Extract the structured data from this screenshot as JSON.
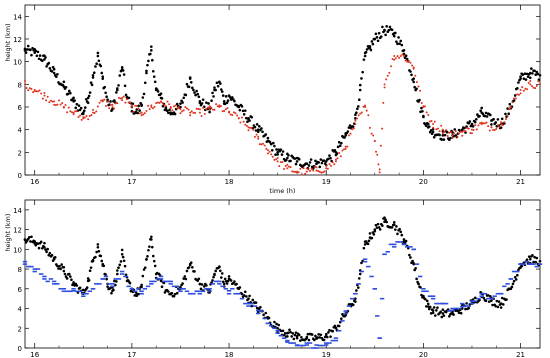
{
  "colors": {
    "black_series": "#000000",
    "red_series": "#e0321e",
    "blue_series": "#2f4fe0",
    "axis": "#000000",
    "background": "#ffffff"
  },
  "chart_data": [
    {
      "type": "scatter",
      "xlabel": "time (h)",
      "ylabel": "height (km)",
      "xlim": [
        15.9,
        21.2
      ],
      "ylim": [
        0,
        15
      ],
      "x_ticks": [
        16,
        17,
        18,
        19,
        20,
        21
      ],
      "y_ticks": [
        0,
        2,
        4,
        6,
        8,
        10,
        12,
        14
      ],
      "grid": false,
      "series": [
        {
          "color": "#000000",
          "style": "dots",
          "x": [
            15.9,
            16.0,
            16.1,
            16.2,
            16.3,
            16.4,
            16.5,
            16.55,
            16.6,
            16.65,
            16.7,
            16.75,
            16.8,
            16.85,
            16.9,
            16.95,
            17.0,
            17.05,
            17.1,
            17.15,
            17.2,
            17.25,
            17.3,
            17.35,
            17.4,
            17.5,
            17.6,
            17.7,
            17.8,
            17.85,
            17.9,
            17.95,
            18.0,
            18.1,
            18.2,
            18.3,
            18.4,
            18.5,
            18.6,
            18.7,
            18.8,
            18.9,
            19.0,
            19.1,
            19.2,
            19.3,
            19.35,
            19.4,
            19.45,
            19.5,
            19.6,
            19.7,
            19.8,
            19.9,
            19.95,
            20.0,
            20.05,
            20.1,
            20.2,
            20.3,
            20.4,
            20.5,
            20.6,
            20.7,
            20.8,
            20.9,
            21.0,
            21.1,
            21.2
          ],
          "y": [
            11,
            10.8,
            10.2,
            9.0,
            7.8,
            6.5,
            5.5,
            6.8,
            8.8,
            10.5,
            8.5,
            6.5,
            5.8,
            7.5,
            9.5,
            6.8,
            6.0,
            5.5,
            6.2,
            9.0,
            11.0,
            7.5,
            6.8,
            5.8,
            5.5,
            6.0,
            8.5,
            6.5,
            5.8,
            7.5,
            8.2,
            6.5,
            7.0,
            6.0,
            5.0,
            4.0,
            3.0,
            2.0,
            1.5,
            1.2,
            1.0,
            1.0,
            1.2,
            2.0,
            3.5,
            5.0,
            7.5,
            10.5,
            11.2,
            12.0,
            12.8,
            12.5,
            11.0,
            8.5,
            6.5,
            5.2,
            4.2,
            3.8,
            3.5,
            3.5,
            4.0,
            4.5,
            5.5,
            4.8,
            4.5,
            6.0,
            8.5,
            9.0,
            8.8
          ]
        },
        {
          "color": "#e0321e",
          "style": "dots",
          "x": [
            15.9,
            16.0,
            16.1,
            16.2,
            16.3,
            16.4,
            16.5,
            16.6,
            16.7,
            16.8,
            16.9,
            17.0,
            17.1,
            17.2,
            17.3,
            17.4,
            17.5,
            17.6,
            17.7,
            17.8,
            17.9,
            18.0,
            18.1,
            18.2,
            18.3,
            18.4,
            18.5,
            18.6,
            18.7,
            18.8,
            18.9,
            19.0,
            19.1,
            19.2,
            19.3,
            19.4,
            19.5,
            19.55,
            19.6,
            19.7,
            19.8,
            19.9,
            20.0,
            20.1,
            20.2,
            20.3,
            20.4,
            20.5,
            20.6,
            20.7,
            20.8,
            20.9,
            21.0,
            21.1,
            21.2
          ],
          "y": [
            8.0,
            7.5,
            7.0,
            6.5,
            6.0,
            5.5,
            5.0,
            5.5,
            6.5,
            6.0,
            6.8,
            6.0,
            5.5,
            6.0,
            6.5,
            6.0,
            5.8,
            5.5,
            5.5,
            5.8,
            6.0,
            5.5,
            5.0,
            4.2,
            3.2,
            2.2,
            1.2,
            0.6,
            0.3,
            0.3,
            0.4,
            0.6,
            1.2,
            2.5,
            4.5,
            6.0,
            3.0,
            0.5,
            8.0,
            10.5,
            10.5,
            9.5,
            6.0,
            4.5,
            4.0,
            3.5,
            3.8,
            4.0,
            4.5,
            4.2,
            4.5,
            6.0,
            7.5,
            8.0,
            8.0
          ]
        }
      ]
    },
    {
      "type": "scatter",
      "ylabel": "height (km)",
      "xlim": [
        15.9,
        21.2
      ],
      "ylim": [
        0,
        15
      ],
      "x_ticks": [
        16,
        17,
        18,
        19,
        20,
        21
      ],
      "y_ticks": [
        0,
        2,
        4,
        6,
        8,
        10,
        12,
        14
      ],
      "grid": false,
      "series": [
        {
          "color": "#000000",
          "style": "dots",
          "x": [
            15.9,
            16.0,
            16.1,
            16.2,
            16.3,
            16.4,
            16.5,
            16.55,
            16.6,
            16.65,
            16.7,
            16.75,
            16.8,
            16.85,
            16.9,
            16.95,
            17.0,
            17.05,
            17.1,
            17.15,
            17.2,
            17.25,
            17.3,
            17.35,
            17.4,
            17.5,
            17.6,
            17.7,
            17.8,
            17.85,
            17.9,
            17.95,
            18.0,
            18.1,
            18.2,
            18.3,
            18.4,
            18.5,
            18.6,
            18.7,
            18.8,
            18.9,
            19.0,
            19.1,
            19.2,
            19.3,
            19.35,
            19.4,
            19.45,
            19.5,
            19.6,
            19.7,
            19.8,
            19.9,
            19.95,
            20.0,
            20.05,
            20.1,
            20.2,
            20.3,
            20.4,
            20.5,
            20.6,
            20.7,
            20.8,
            20.9,
            21.0,
            21.1,
            21.2
          ],
          "y": [
            11,
            10.8,
            10.2,
            9.0,
            7.8,
            6.5,
            5.5,
            6.8,
            8.8,
            10.5,
            8.5,
            6.5,
            5.8,
            7.5,
            9.5,
            6.8,
            6.0,
            5.5,
            6.2,
            9.0,
            11.0,
            7.5,
            6.8,
            5.8,
            5.5,
            6.0,
            8.5,
            6.5,
            5.8,
            7.5,
            8.2,
            6.5,
            7.0,
            6.0,
            5.0,
            4.0,
            3.0,
            2.0,
            1.5,
            1.2,
            1.0,
            1.0,
            1.2,
            2.0,
            3.5,
            5.0,
            7.5,
            10.5,
            11.2,
            12.0,
            12.8,
            12.5,
            11.0,
            8.5,
            6.5,
            5.2,
            4.2,
            3.8,
            3.5,
            3.5,
            4.0,
            4.5,
            5.5,
            4.8,
            4.5,
            6.0,
            8.5,
            9.0,
            8.8
          ]
        },
        {
          "color": "#2f4fe0",
          "style": "dashes",
          "x": [
            15.9,
            16.0,
            16.1,
            16.2,
            16.3,
            16.4,
            16.5,
            16.6,
            16.7,
            16.8,
            16.9,
            17.0,
            17.1,
            17.2,
            17.3,
            17.4,
            17.5,
            17.6,
            17.7,
            17.8,
            17.9,
            18.0,
            18.1,
            18.2,
            18.3,
            18.4,
            18.5,
            18.6,
            18.7,
            18.8,
            18.9,
            19.0,
            19.1,
            19.2,
            19.3,
            19.4,
            19.5,
            19.55,
            19.6,
            19.7,
            19.8,
            19.9,
            20.0,
            20.1,
            20.2,
            20.3,
            20.4,
            20.5,
            20.6,
            20.7,
            20.8,
            20.9,
            21.0,
            21.1,
            21.2
          ],
          "y": [
            8.5,
            8.0,
            7.0,
            6.5,
            6.0,
            5.8,
            5.5,
            6.0,
            7.0,
            6.5,
            7.5,
            6.0,
            5.5,
            6.5,
            7.0,
            6.5,
            6.0,
            5.5,
            5.5,
            6.0,
            6.5,
            5.8,
            5.5,
            4.5,
            3.8,
            2.5,
            1.5,
            0.6,
            0.3,
            0.3,
            0.3,
            0.3,
            1.0,
            3.5,
            5.5,
            9.0,
            6.0,
            1.0,
            9.5,
            10.5,
            10.5,
            10.0,
            6.0,
            5.0,
            4.5,
            3.8,
            4.2,
            4.5,
            5.5,
            5.0,
            5.5,
            7.0,
            8.5,
            8.5,
            8.5
          ]
        }
      ]
    }
  ]
}
